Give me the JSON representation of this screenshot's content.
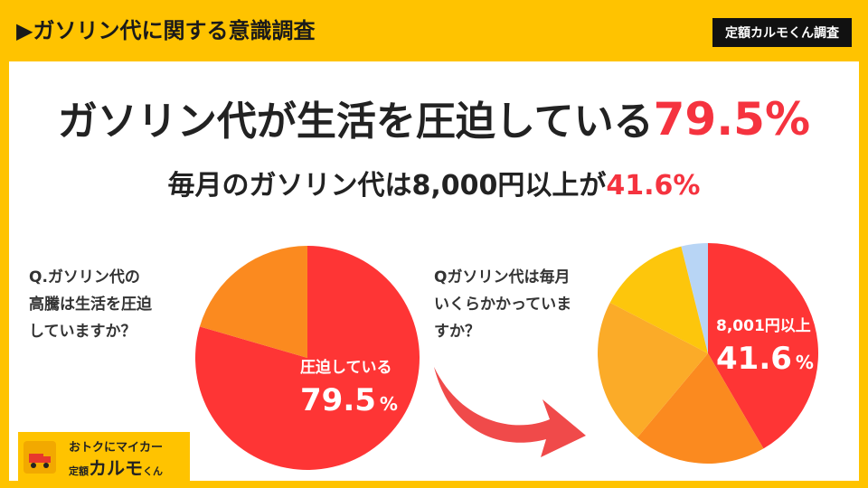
{
  "header": {
    "title": "▶ガソリン代に関する意識調査",
    "badge": "定額カルモくん調査"
  },
  "headline": {
    "text": "ガソリン代が生活を圧迫している",
    "pct": "79.5%"
  },
  "subhead": {
    "text": "毎月のガソリン代は8,000円以上が",
    "pct": "41.6%"
  },
  "q1": {
    "lines": [
      "Q.ガソリン代の",
      "高騰は生活を圧迫",
      "していますか？"
    ]
  },
  "q2": {
    "lines": [
      "Qガソリン代は毎月",
      "いくらかかっていま",
      "すか？"
    ]
  },
  "logo": {
    "tagline": "おトクにマイカー",
    "prefix": "定額",
    "brand": "カルモ",
    "suffix": "くん"
  },
  "colors": {
    "accent": "#f5333f",
    "brand_yellow": "#ffc300"
  },
  "chart_data": [
    {
      "type": "pie",
      "slices": [
        {
          "label": "圧迫している",
          "value": 79.5,
          "color": "#fe3535"
        },
        {
          "label": "",
          "value": 20.5,
          "color": "#fb8a1f"
        }
      ],
      "annotation": {
        "label": "圧迫している",
        "value": "79.5",
        "unit": "%"
      }
    },
    {
      "type": "pie",
      "slices": [
        {
          "label": "8,001円以上",
          "value": 41.6,
          "color": "#fe3535"
        },
        {
          "label": "",
          "value": 19.5,
          "color": "#fb8a1f"
        },
        {
          "label": "",
          "value": 21.5,
          "color": "#fbab28"
        },
        {
          "label": "",
          "value": 13.5,
          "color": "#fdc60c"
        },
        {
          "label": "",
          "value": 3.9,
          "color": "#b8d5f5"
        }
      ],
      "annotation": {
        "label": "8,001円以上",
        "value": "41.6",
        "unit": "%"
      }
    }
  ]
}
